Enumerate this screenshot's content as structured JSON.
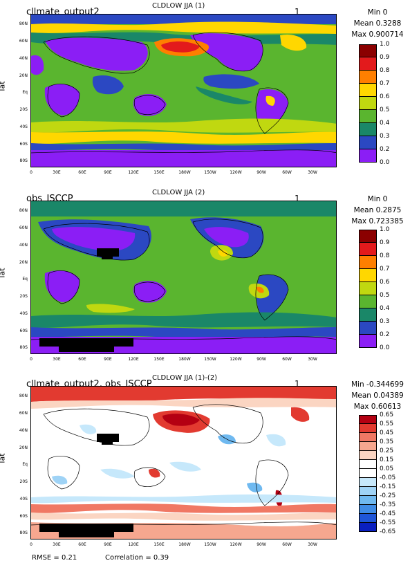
{
  "panels": [
    {
      "title": "CLDLOW JJA (1)",
      "left_label": "cllmate_output2",
      "right_label": "1",
      "stats": [
        "Min 0",
        "Mean 0.3288",
        "Max 0.900714"
      ],
      "ylabel": "lat",
      "colorbar_labels": [
        "1.0",
        "0.9",
        "0.8",
        "0.7",
        "0.6",
        "0.5",
        "0.4",
        "0.3",
        "0.2",
        "0.1",
        "0.0"
      ]
    },
    {
      "title": "CLDLOW JJA (2)",
      "left_label": "obs_ISCCP",
      "right_label": "1",
      "stats": [
        "Min 0",
        "Mean 0.2875",
        "Max 0.723385"
      ],
      "ylabel": "lat",
      "colorbar_labels": [
        "1.0",
        "0.9",
        "0.8",
        "0.7",
        "0.6",
        "0.5",
        "0.4",
        "0.3",
        "0.2",
        "0.1",
        "0.0"
      ]
    },
    {
      "title": "CLDLOW JJA (1)-(2)",
      "left_label": "cllmate_output2, obs_ISCCP",
      "right_label": "1",
      "stats": [
        "Min -0.344699",
        "Mean 0.04389",
        "Max 0.60613"
      ],
      "ylabel": "lat",
      "colorbar_labels": [
        "0.65",
        "0.55",
        "0.45",
        "0.35",
        "0.25",
        "0.15",
        "0.05",
        "-0.05",
        "-0.15",
        "-0.25",
        "-0.35",
        "-0.45",
        "-0.55",
        "-0.65"
      ]
    }
  ],
  "lat_ticks": [
    "80N",
    "60N",
    "40N",
    "20N",
    "Eq",
    "20S",
    "40S",
    "60S",
    "80S"
  ],
  "lon_ticks": [
    "0",
    "30E",
    "60E",
    "90E",
    "120E",
    "150E",
    "180W",
    "150W",
    "120W",
    "90W",
    "60W",
    "30W"
  ],
  "colors": {
    "abs": [
      "#8b0000",
      "#ee1c00",
      "#ff7a00",
      "#ffd800",
      "#c2dc00",
      "#5cb82e",
      "#1e8c6a",
      "#2b3fc8",
      "#8f18f5"
    ],
    "abs_full": [
      "#8b0000",
      "#e31a1c",
      "#ff7f00",
      "#ffd700",
      "#c0d810",
      "#5ab52f",
      "#1a8768",
      "#2b48c2",
      "#8b1ef5",
      "#8a1ef6"
    ],
    "diff": [
      "#b40012",
      "#e23a30",
      "#f07864",
      "#f6a78f",
      "#fbd5c2",
      "#ffffff",
      "#ffffff",
      "#c6e8fb",
      "#9fd3f6",
      "#6fb9f0",
      "#3f8ce6",
      "#1f56d8",
      "#0a1fc0"
    ]
  },
  "footer": {
    "rmse": "RMSE = 0.21",
    "correlation": "Correlation = 0.39"
  }
}
